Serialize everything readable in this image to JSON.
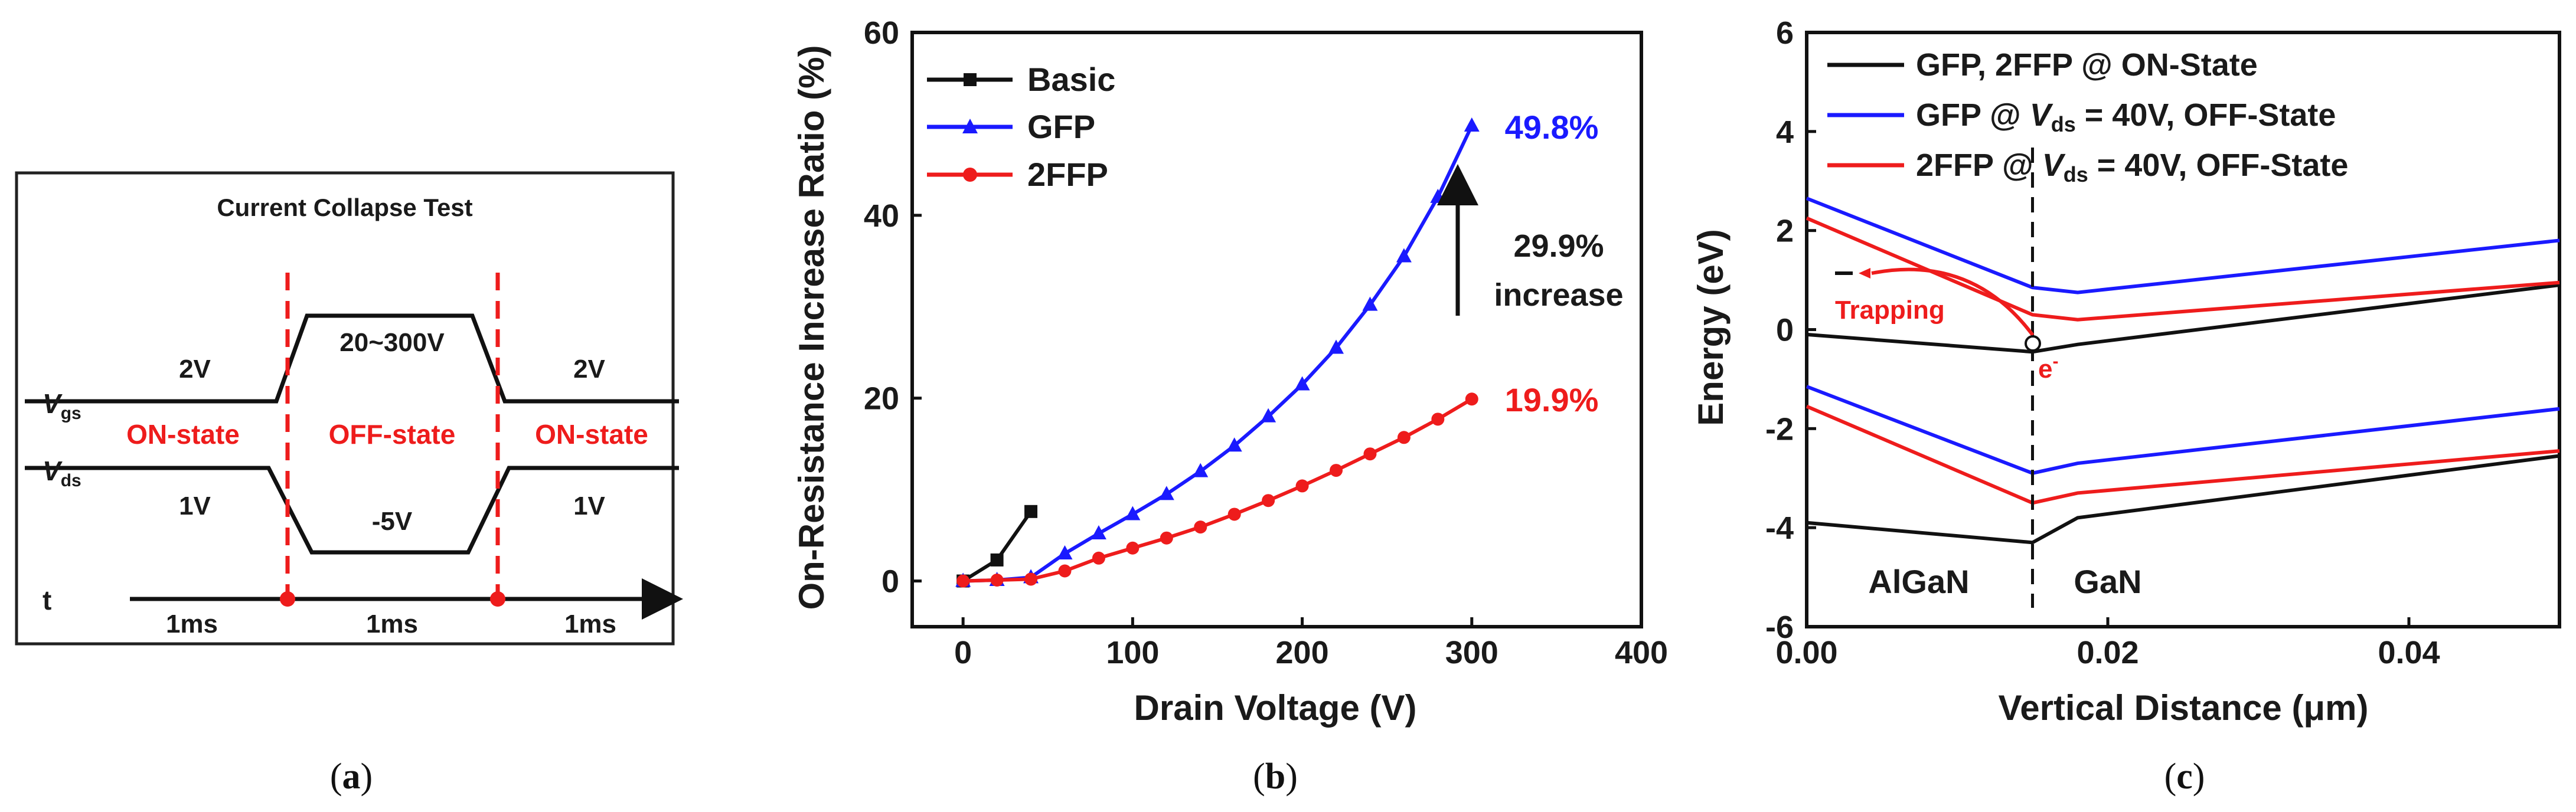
{
  "colors": {
    "black": "#111111",
    "blue": "#1a1aff",
    "red": "#ee1c1c"
  },
  "chart_data": [
    {
      "type": "timing-diagram",
      "caption": "(a)",
      "title": "Current Collapse Test",
      "signals": {
        "vgs_main": "V",
        "vgs_sub": "gs",
        "vds_main": "V",
        "vds_sub": "ds"
      },
      "labels": {
        "left_vgs": "2V",
        "right_vgs": "2V",
        "left_vds": "1V",
        "right_vds": "1V",
        "high": "20~300V",
        "low": "-5V",
        "on_left": "ON-state",
        "off": "OFF-state",
        "on_right": "ON-state"
      },
      "time_axis": {
        "label": "t",
        "segments": [
          "1ms",
          "1ms",
          "1ms"
        ]
      }
    },
    {
      "type": "line",
      "caption": "(b)",
      "xlabel": "Drain Voltage (V)",
      "ylabel": "On-Resistance Increase Ratio (%)",
      "xlim": [
        -30,
        400
      ],
      "ylim": [
        -5,
        60
      ],
      "xticks": [
        0,
        100,
        200,
        300,
        400
      ],
      "yticks": [
        0,
        20,
        40,
        60
      ],
      "series": [
        {
          "name": "Basic",
          "color": "#111111",
          "marker": "square",
          "x": [
            0,
            20,
            40
          ],
          "y": [
            0,
            2.3,
            7.6
          ]
        },
        {
          "name": "GFP",
          "color": "#1a1aff",
          "marker": "triangle",
          "x": [
            0,
            20,
            40,
            60,
            80,
            100,
            120,
            140,
            160,
            180,
            200,
            220,
            240,
            260,
            280,
            300
          ],
          "y": [
            0,
            0.1,
            0.4,
            3.0,
            5.2,
            7.3,
            9.5,
            12.0,
            14.8,
            18.0,
            21.5,
            25.5,
            30.2,
            35.5,
            42.0,
            49.8
          ]
        },
        {
          "name": "2FFP",
          "color": "#ee1c1c",
          "marker": "circle",
          "x": [
            0,
            20,
            40,
            60,
            80,
            100,
            120,
            140,
            160,
            180,
            200,
            220,
            240,
            260,
            280,
            300
          ],
          "y": [
            0,
            0.1,
            0.2,
            1.1,
            2.5,
            3.6,
            4.7,
            5.9,
            7.3,
            8.8,
            10.4,
            12.1,
            13.9,
            15.7,
            17.7,
            19.9
          ]
        }
      ],
      "annotations": {
        "gfp_end": "49.8%",
        "ffp_end": "19.9%",
        "diff_top": "29.9%",
        "diff_bottom": "increase"
      }
    },
    {
      "type": "line",
      "caption": "(c)",
      "xlabel": "Vertical Distance (μm)",
      "ylabel": "Energy (eV)",
      "xlim": [
        0,
        0.05
      ],
      "ylim": [
        -6,
        6
      ],
      "xticks": [
        "0.00",
        "0.02",
        "0.04"
      ],
      "xtick_values": [
        0,
        0.02,
        0.04
      ],
      "yticks": [
        -6,
        -4,
        -2,
        0,
        2,
        4,
        6
      ],
      "legend": [
        {
          "text": "GFP, 2FFP @ ON-State",
          "color": "#111111"
        },
        {
          "pre": "GFP @ ",
          "sym": "V",
          "sub": "ds",
          "post": " = 40V, OFF-State",
          "color": "#1a1aff"
        },
        {
          "pre": "2FFP @ ",
          "sym": "V",
          "sub": "ds",
          "post": " = 40V, OFF-State",
          "color": "#ee1c1c"
        }
      ],
      "series": [
        {
          "name": "ON Ec",
          "color": "#111111",
          "x": [
            0,
            0.015,
            0.018,
            0.05
          ],
          "y": [
            -0.1,
            -0.45,
            -0.3,
            0.9
          ]
        },
        {
          "name": "ON Ev",
          "color": "#111111",
          "x": [
            0,
            0.015,
            0.018,
            0.05
          ],
          "y": [
            -3.9,
            -4.3,
            -3.8,
            -2.55
          ]
        },
        {
          "name": "GFP Ec",
          "color": "#1a1aff",
          "x": [
            0,
            0.015,
            0.018,
            0.05
          ],
          "y": [
            2.65,
            0.85,
            0.75,
            1.8
          ]
        },
        {
          "name": "GFP Ev",
          "color": "#1a1aff",
          "x": [
            0,
            0.015,
            0.018,
            0.05
          ],
          "y": [
            -1.15,
            -2.9,
            -2.7,
            -1.6
          ]
        },
        {
          "name": "2FFP Ec",
          "color": "#ee1c1c",
          "x": [
            0,
            0.015,
            0.018,
            0.05
          ],
          "y": [
            2.25,
            0.3,
            0.2,
            0.95
          ]
        },
        {
          "name": "2FFP Ev",
          "color": "#ee1c1c",
          "x": [
            0,
            0.015,
            0.018,
            0.05
          ],
          "y": [
            -1.55,
            -3.5,
            -3.3,
            -2.45
          ]
        }
      ],
      "interface_x": 0.015,
      "annotations": {
        "trapping": "Trapping",
        "electron": "e",
        "electron_sup": "-",
        "left_region": "AlGaN",
        "right_region": "GaN"
      }
    }
  ]
}
